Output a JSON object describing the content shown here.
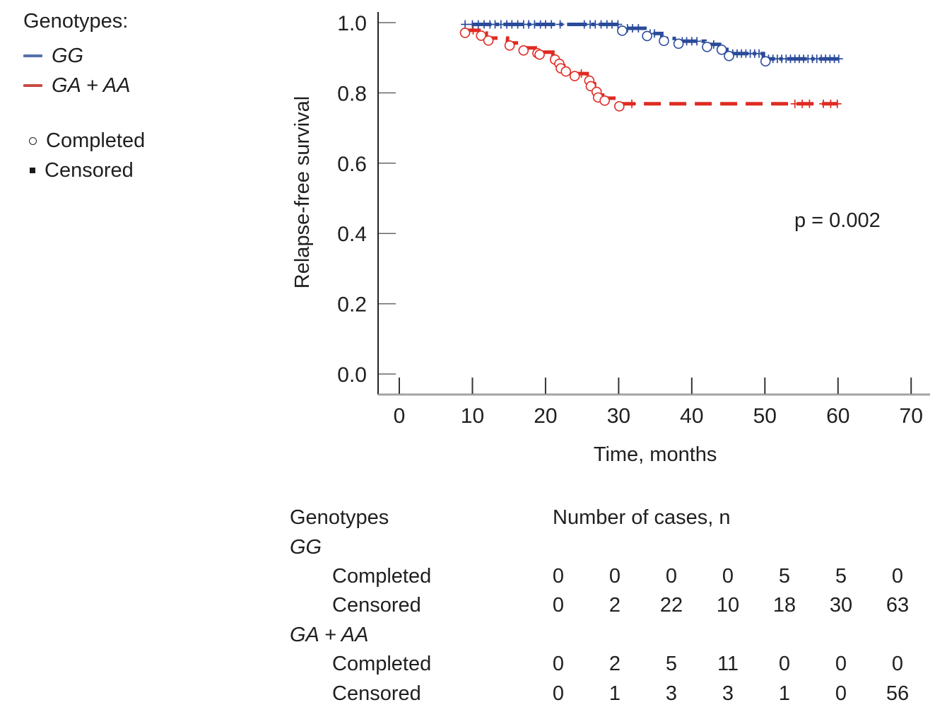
{
  "legend": {
    "title": "Genotypes:",
    "series": [
      {
        "label": "GG",
        "swatch_color": "#5571ab"
      },
      {
        "label": "GA + AA",
        "swatch_color": "#ca4a45"
      }
    ],
    "markers": [
      {
        "label": "Completed",
        "symbol": "open-circle"
      },
      {
        "label": "Censored",
        "symbol": "filled-square"
      }
    ]
  },
  "chart_data": {
    "type": "line",
    "subtype": "kaplan-meier-step",
    "title": "",
    "xlabel": "Time, months",
    "ylabel": "Relapse-free survival",
    "annotation": "p = 0.002",
    "xlim": [
      0,
      70
    ],
    "ylim": [
      0.0,
      1.0
    ],
    "xticks": [
      0,
      10,
      20,
      30,
      40,
      50,
      60,
      70
    ],
    "yticks": [
      "0.0",
      "0.2",
      "0.4",
      "0.6",
      "0.8",
      "1.0"
    ],
    "grid": false,
    "legend_position": "outside-top-left",
    "axis_color": "#222222",
    "baseline_color": "#a3a3a3",
    "series": [
      {
        "name": "GG",
        "color": "#2b4b9b",
        "dash": "28 6 5 6",
        "points": [
          [
            9.9,
            0.995
          ],
          [
            30.2,
            0.995
          ],
          [
            30.2,
            0.984
          ],
          [
            33.6,
            0.984
          ],
          [
            33.6,
            0.969
          ],
          [
            35.9,
            0.969
          ],
          [
            35.9,
            0.955
          ],
          [
            37.9,
            0.955
          ],
          [
            37.9,
            0.947
          ],
          [
            41.8,
            0.947
          ],
          [
            41.8,
            0.938
          ],
          [
            43.8,
            0.938
          ],
          [
            43.8,
            0.93
          ],
          [
            44.8,
            0.93
          ],
          [
            44.8,
            0.912
          ],
          [
            49.8,
            0.912
          ],
          [
            49.8,
            0.897
          ],
          [
            60.2,
            0.897
          ]
        ],
        "completed_events": [
          [
            30.2,
            0.984
          ],
          [
            33.6,
            0.969
          ],
          [
            35.9,
            0.955
          ],
          [
            37.9,
            0.947
          ],
          [
            41.8,
            0.938
          ],
          [
            43.8,
            0.93
          ],
          [
            44.8,
            0.912
          ],
          [
            49.8,
            0.897
          ]
        ],
        "censored_months": [
          9.0,
          10.0,
          10.8,
          11.6,
          12.4,
          13.1,
          13.9,
          14.7,
          15.4,
          16.2,
          17.0,
          17.7,
          18.5,
          19.3,
          20.0,
          20.8,
          22.0,
          25.3,
          26.1,
          26.8,
          27.6,
          28.4,
          29.1,
          29.9,
          31.2,
          31.9,
          32.7,
          34.3,
          34.9,
          38.7,
          39.3,
          40.0,
          40.7,
          43.0,
          45.6,
          46.2,
          46.8,
          47.4,
          48.0,
          48.6,
          49.2,
          50.5,
          51.1,
          51.7,
          52.3,
          52.9,
          53.5,
          54.1,
          54.7,
          55.3,
          55.9,
          56.5,
          57.1,
          57.7,
          58.3,
          58.9,
          59.5,
          60.1
        ]
      },
      {
        "name": "GA + AA",
        "color": "#df2b22",
        "dash": "24 12",
        "points": [
          [
            8.7,
            0.978
          ],
          [
            10.9,
            0.978
          ],
          [
            10.9,
            0.97
          ],
          [
            11.9,
            0.97
          ],
          [
            11.9,
            0.956
          ],
          [
            14.8,
            0.956
          ],
          [
            14.8,
            0.942
          ],
          [
            16.7,
            0.942
          ],
          [
            16.7,
            0.928
          ],
          [
            18.6,
            0.928
          ],
          [
            18.6,
            0.92
          ],
          [
            18.9,
            0.92
          ],
          [
            18.9,
            0.916
          ],
          [
            21.0,
            0.916
          ],
          [
            21.0,
            0.902
          ],
          [
            21.6,
            0.902
          ],
          [
            21.6,
            0.89
          ],
          [
            21.8,
            0.89
          ],
          [
            21.8,
            0.877
          ],
          [
            22.5,
            0.877
          ],
          [
            22.5,
            0.868
          ],
          [
            23.7,
            0.868
          ],
          [
            23.7,
            0.855
          ],
          [
            25.7,
            0.855
          ],
          [
            25.7,
            0.842
          ],
          [
            25.9,
            0.842
          ],
          [
            25.9,
            0.826
          ],
          [
            26.7,
            0.826
          ],
          [
            26.7,
            0.81
          ],
          [
            26.9,
            0.81
          ],
          [
            26.9,
            0.794
          ],
          [
            27.8,
            0.794
          ],
          [
            27.8,
            0.785
          ],
          [
            29.8,
            0.785
          ],
          [
            29.8,
            0.769
          ],
          [
            60.0,
            0.769
          ]
        ],
        "completed_events": [
          [
            8.7,
            0.978
          ],
          [
            10.9,
            0.97
          ],
          [
            11.9,
            0.956
          ],
          [
            14.8,
            0.942
          ],
          [
            16.7,
            0.928
          ],
          [
            18.6,
            0.92
          ],
          [
            18.9,
            0.916
          ],
          [
            21.0,
            0.902
          ],
          [
            21.6,
            0.89
          ],
          [
            21.8,
            0.877
          ],
          [
            22.5,
            0.868
          ],
          [
            23.7,
            0.855
          ],
          [
            25.7,
            0.842
          ],
          [
            25.9,
            0.826
          ],
          [
            26.7,
            0.81
          ],
          [
            26.9,
            0.794
          ],
          [
            27.8,
            0.785
          ],
          [
            29.8,
            0.769
          ]
        ],
        "censored_months": [
          10.1,
          24.9,
          31.8,
          54.1,
          55.1,
          56.1,
          58.0,
          59.0,
          59.9
        ]
      }
    ]
  },
  "table": {
    "col_header_left": "Genotypes",
    "col_header_right": "Number of cases, n",
    "groups": [
      {
        "label": "GG",
        "rows": [
          {
            "label": "Completed",
            "values": [
              "0",
              "0",
              "0",
              "0",
              "5",
              "5",
              "0"
            ]
          },
          {
            "label": "Censored",
            "values": [
              "0",
              "2",
              "22",
              "10",
              "18",
              "30",
              "63"
            ]
          }
        ]
      },
      {
        "label": "GA + AA",
        "rows": [
          {
            "label": "Completed",
            "values": [
              "0",
              "2",
              "5",
              "11",
              "0",
              "0",
              "0"
            ]
          },
          {
            "label": "Censored",
            "values": [
              "0",
              "1",
              "3",
              "3",
              "1",
              "0",
              "56"
            ]
          }
        ]
      }
    ]
  }
}
